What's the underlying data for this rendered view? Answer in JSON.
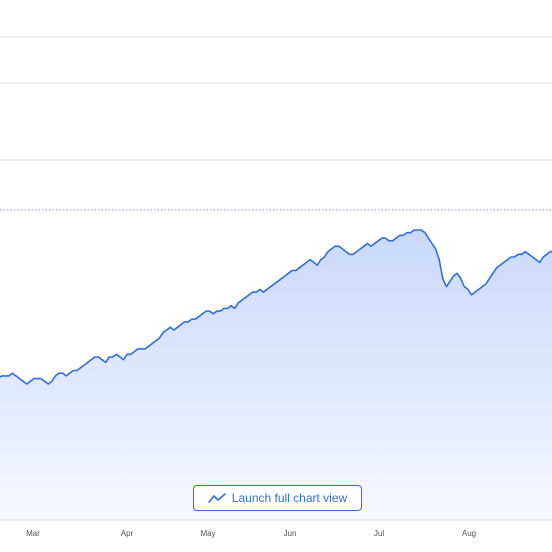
{
  "colors": {
    "line": "#2f6fe0",
    "fill_top": "#c9d8fb",
    "fill_bottom": "#f5f8ff",
    "grid": "#e6e6e6",
    "reference_line": "#7f9be0",
    "axis": "#dddddd",
    "button": "#2f6fe0"
  },
  "launch_button": {
    "label": "Launch full chart view",
    "icon": "trend-line-icon"
  },
  "chart_data": {
    "type": "area",
    "title": "",
    "xlabel": "",
    "ylabel": "",
    "x_tick_labels": [
      "Mar",
      "Apr",
      "May",
      "Jun",
      "Jul",
      "Aug"
    ],
    "y_tick_labels_visible": false,
    "grid": true,
    "reference_line": {
      "style": "dotted",
      "value": 100
    },
    "ylim": [
      0,
      130
    ],
    "series": [
      {
        "values": [
          49,
          50,
          50,
          50,
          51,
          50,
          49,
          48,
          47,
          48,
          49,
          49,
          49,
          48,
          47,
          48,
          50,
          51,
          51,
          50,
          51,
          52,
          52,
          53,
          54,
          55,
          56,
          57,
          57,
          56,
          55,
          57,
          57,
          58,
          57,
          56,
          58,
          58,
          59,
          60,
          60,
          60,
          61,
          62,
          63,
          64,
          66,
          67,
          68,
          67,
          68,
          69,
          70,
          70,
          71,
          71,
          72,
          73,
          74,
          74,
          73,
          74,
          74,
          75,
          75,
          76,
          75,
          77,
          78,
          79,
          80,
          81,
          81,
          82,
          81,
          82,
          83,
          84,
          85,
          86,
          87,
          88,
          89,
          89,
          90,
          91,
          92,
          93,
          92,
          91,
          93,
          94,
          96,
          97,
          98,
          98,
          97,
          96,
          95,
          95,
          96,
          97,
          98,
          99,
          98,
          99,
          100,
          101,
          101,
          100,
          100,
          101,
          102,
          102,
          103,
          103,
          104,
          104,
          104,
          103,
          101,
          99,
          97,
          93,
          86,
          83,
          85,
          87,
          88,
          86,
          83,
          82,
          80,
          81,
          82,
          83,
          84,
          86,
          88,
          90,
          91,
          92,
          93,
          94,
          94,
          95,
          95,
          96,
          95,
          94,
          93,
          92,
          94,
          95,
          96,
          96
        ]
      }
    ],
    "x_label_positions_note": ""
  }
}
